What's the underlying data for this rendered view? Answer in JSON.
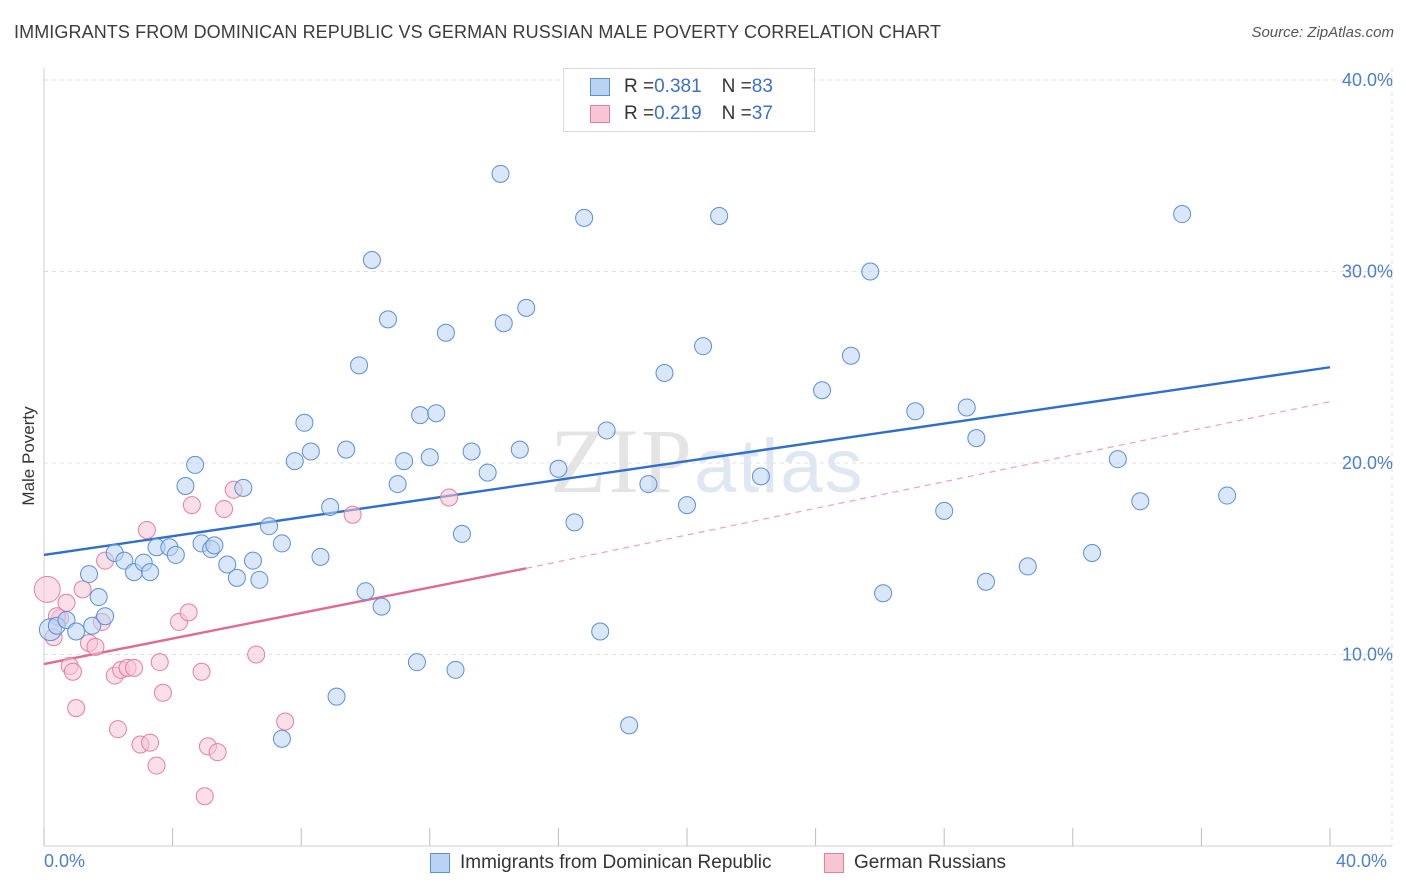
{
  "title": "IMMIGRANTS FROM DOMINICAN REPUBLIC VS GERMAN RUSSIAN MALE POVERTY CORRELATION CHART",
  "source": "Source: ZipAtlas.com",
  "watermark": "ZIPatlas",
  "legend": {
    "rows": [
      {
        "r_label": "R = ",
        "r_value": "0.381",
        "n_label": "N = ",
        "n_value": "83"
      },
      {
        "r_label": "R = ",
        "r_value": "0.219",
        "n_label": "N = ",
        "n_value": "37"
      }
    ]
  },
  "bottom_legend": [
    "Immigrants from Dominican Republic",
    "German Russians"
  ],
  "colors": {
    "blue_fill": "#b9d3f3",
    "blue_stroke": "#5b8fd8",
    "blue_line": "#2f6fcb",
    "pink_fill": "#f8c5d5",
    "pink_stroke": "#e57fa0",
    "pink_line": "#e06a93",
    "axis_text": "#4a7fd1",
    "grid": "#e0e0e0"
  },
  "chart_data": {
    "type": "scatter",
    "title": "IMMIGRANTS FROM DOMINICAN REPUBLIC VS GERMAN RUSSIAN MALE POVERTY CORRELATION CHART",
    "xlabel": "",
    "ylabel": "Male Poverty",
    "xlim": [
      0,
      40
    ],
    "ylim": [
      0,
      42
    ],
    "x_tick_labels": [
      "0.0%",
      "40.0%"
    ],
    "y_ticks": [
      10,
      20,
      30,
      40
    ],
    "y_tick_labels": [
      "10.0%",
      "20.0%",
      "30.0%",
      "40.0%"
    ],
    "grid": true,
    "legend_position": "top-center",
    "series": [
      {
        "name": "Immigrants from Dominican Republic",
        "color": "#5b8fd8",
        "trend": {
          "x": [
            0,
            40
          ],
          "y": [
            15.2,
            25.0
          ],
          "style": "solid"
        },
        "points": [
          [
            0.2,
            11.3
          ],
          [
            0.4,
            11.5
          ],
          [
            0.7,
            11.8
          ],
          [
            1.0,
            11.2
          ],
          [
            1.5,
            11.5
          ],
          [
            1.4,
            14.2
          ],
          [
            1.7,
            13.0
          ],
          [
            1.9,
            12.0
          ],
          [
            2.2,
            15.3
          ],
          [
            2.5,
            14.9
          ],
          [
            2.8,
            14.3
          ],
          [
            3.1,
            14.8
          ],
          [
            3.3,
            14.3
          ],
          [
            3.5,
            15.6
          ],
          [
            3.9,
            15.6
          ],
          [
            4.1,
            15.2
          ],
          [
            4.4,
            18.8
          ],
          [
            4.7,
            19.9
          ],
          [
            4.9,
            15.8
          ],
          [
            5.2,
            15.5
          ],
          [
            5.3,
            15.7
          ],
          [
            5.7,
            14.7
          ],
          [
            6.0,
            14.0
          ],
          [
            6.2,
            18.7
          ],
          [
            6.5,
            14.9
          ],
          [
            6.7,
            13.9
          ],
          [
            7.0,
            16.7
          ],
          [
            7.4,
            15.8
          ],
          [
            7.4,
            5.6
          ],
          [
            7.8,
            20.1
          ],
          [
            8.1,
            22.1
          ],
          [
            8.3,
            20.6
          ],
          [
            8.6,
            15.1
          ],
          [
            8.9,
            17.7
          ],
          [
            9.1,
            7.8
          ],
          [
            9.4,
            20.7
          ],
          [
            9.8,
            25.1
          ],
          [
            10.0,
            13.3
          ],
          [
            10.2,
            30.6
          ],
          [
            10.5,
            12.5
          ],
          [
            10.7,
            27.5
          ],
          [
            11.0,
            18.9
          ],
          [
            11.2,
            20.1
          ],
          [
            11.6,
            9.6
          ],
          [
            11.7,
            22.5
          ],
          [
            12.0,
            20.3
          ],
          [
            12.2,
            22.6
          ],
          [
            12.5,
            26.8
          ],
          [
            12.8,
            9.2
          ],
          [
            13.0,
            16.3
          ],
          [
            13.3,
            20.6
          ],
          [
            13.8,
            19.5
          ],
          [
            14.2,
            35.1
          ],
          [
            14.3,
            27.3
          ],
          [
            14.8,
            20.7
          ],
          [
            15.0,
            28.1
          ],
          [
            16.0,
            19.7
          ],
          [
            16.5,
            16.9
          ],
          [
            16.8,
            32.8
          ],
          [
            17.3,
            11.2
          ],
          [
            17.5,
            21.7
          ],
          [
            18.2,
            6.3
          ],
          [
            18.8,
            18.9
          ],
          [
            19.3,
            24.7
          ],
          [
            20.0,
            17.8
          ],
          [
            20.5,
            26.1
          ],
          [
            21.0,
            32.9
          ],
          [
            22.3,
            19.3
          ],
          [
            24.2,
            23.8
          ],
          [
            25.1,
            25.6
          ],
          [
            25.7,
            30.0
          ],
          [
            26.1,
            13.2
          ],
          [
            27.1,
            22.7
          ],
          [
            28.0,
            17.5
          ],
          [
            28.7,
            22.9
          ],
          [
            29.0,
            21.3
          ],
          [
            29.3,
            13.8
          ],
          [
            30.6,
            14.6
          ],
          [
            32.6,
            15.3
          ],
          [
            33.4,
            20.2
          ],
          [
            34.1,
            18.0
          ],
          [
            35.4,
            33.0
          ],
          [
            36.8,
            18.3
          ]
        ]
      },
      {
        "name": "German Russians",
        "color": "#e57fa0",
        "trend_solid": {
          "x": [
            0,
            15
          ],
          "y": [
            9.5,
            14.5
          ]
        },
        "trend_dashed": {
          "x": [
            15,
            40
          ],
          "y": [
            14.5,
            23.2
          ]
        },
        "points": [
          [
            0.1,
            13.4
          ],
          [
            0.3,
            10.9
          ],
          [
            0.5,
            11.9
          ],
          [
            0.7,
            12.7
          ],
          [
            0.8,
            9.4
          ],
          [
            0.9,
            9.1
          ],
          [
            1.0,
            7.2
          ],
          [
            1.2,
            13.4
          ],
          [
            1.4,
            10.6
          ],
          [
            1.6,
            10.4
          ],
          [
            1.8,
            11.7
          ],
          [
            1.9,
            14.9
          ],
          [
            2.2,
            8.9
          ],
          [
            2.3,
            6.1
          ],
          [
            2.4,
            9.2
          ],
          [
            2.6,
            9.3
          ],
          [
            2.8,
            9.3
          ],
          [
            3.0,
            5.3
          ],
          [
            3.2,
            16.5
          ],
          [
            3.3,
            5.4
          ],
          [
            3.5,
            4.2
          ],
          [
            3.6,
            9.6
          ],
          [
            3.7,
            8.0
          ],
          [
            4.2,
            11.7
          ],
          [
            4.5,
            12.2
          ],
          [
            4.6,
            17.8
          ],
          [
            4.9,
            9.1
          ],
          [
            5.0,
            2.6
          ],
          [
            5.1,
            5.2
          ],
          [
            5.4,
            4.9
          ],
          [
            5.6,
            17.6
          ],
          [
            5.9,
            18.6
          ],
          [
            6.6,
            10.0
          ],
          [
            7.5,
            6.5
          ],
          [
            9.6,
            17.3
          ],
          [
            12.6,
            18.2
          ],
          [
            0.4,
            12.0
          ]
        ]
      }
    ]
  }
}
